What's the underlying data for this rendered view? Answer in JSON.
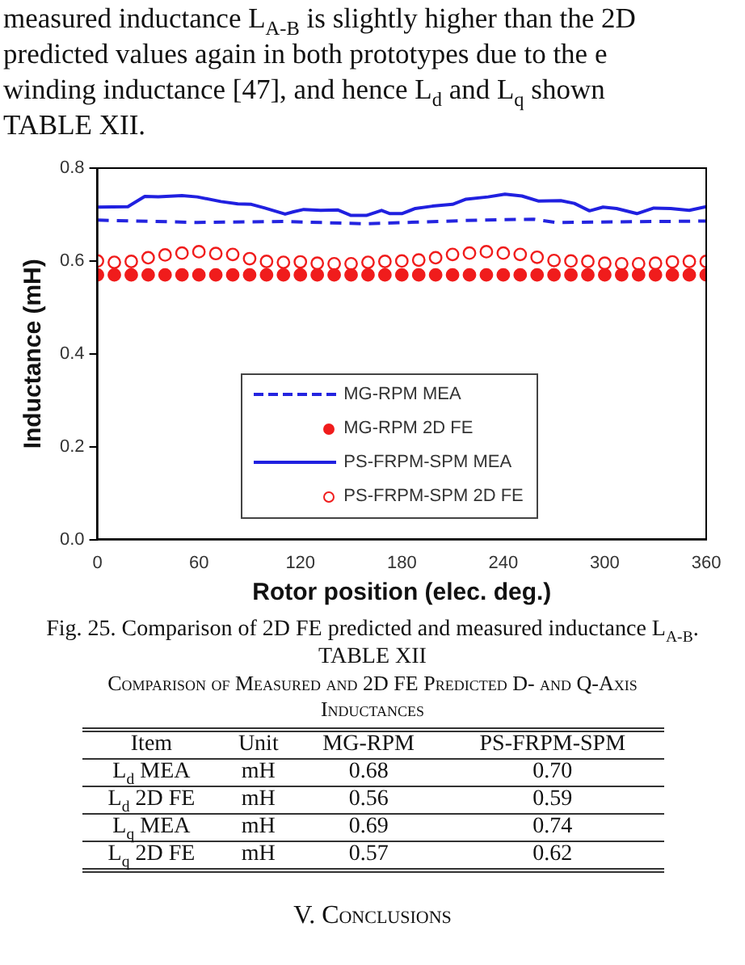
{
  "chart_data": {
    "type": "line",
    "xlabel": "Rotor position (elec. deg.)",
    "ylabel": "Inductance (mH)",
    "xlim": [
      0,
      360
    ],
    "xticks": [
      0,
      60,
      120,
      180,
      240,
      300,
      360
    ],
    "ylim": [
      0,
      0.8
    ],
    "yticks": [
      {
        "value": 0,
        "label": "0.0"
      },
      0.2,
      0.4,
      0.6,
      0.8
    ],
    "grid": false,
    "legend": "bottom",
    "series": [
      {
        "name": "MG-RPM MEA",
        "type": "line",
        "line_style": "dashed",
        "marker": "none",
        "color": "#2424e0",
        "x": [
          0,
          59,
          112,
          159,
          225,
          258,
          271,
          360
        ],
        "values": [
          0.688,
          0.683,
          0.685,
          0.68,
          0.688,
          0.69,
          0.683,
          0.686
        ]
      },
      {
        "name": "MG-RPM 2D FE",
        "type": "scatter",
        "marker": "circle",
        "color": "#f01c1c",
        "x": [
          0,
          10,
          20,
          30,
          40,
          50,
          60,
          70,
          80,
          90,
          100,
          110,
          120,
          130,
          140,
          150,
          160,
          170,
          180,
          190,
          200,
          210,
          220,
          230,
          240,
          250,
          260,
          270,
          280,
          290,
          300,
          310,
          320,
          330,
          340,
          350,
          360
        ],
        "values": [
          0.57,
          0.57,
          0.57,
          0.57,
          0.57,
          0.57,
          0.57,
          0.57,
          0.57,
          0.57,
          0.57,
          0.57,
          0.57,
          0.57,
          0.57,
          0.57,
          0.57,
          0.57,
          0.57,
          0.57,
          0.57,
          0.57,
          0.57,
          0.57,
          0.57,
          0.57,
          0.57,
          0.57,
          0.57,
          0.57,
          0.57,
          0.57,
          0.57,
          0.57,
          0.57,
          0.57,
          0.57
        ]
      },
      {
        "name": "PS-FRPM-SPM MEA",
        "type": "line",
        "line_style": "solid",
        "marker": "none",
        "color": "#2020e0",
        "x": [
          0,
          18,
          28,
          36,
          50,
          59,
          73,
          83,
          91,
          99,
          111,
          116,
          122,
          132,
          142,
          150,
          159,
          168,
          173,
          180,
          188,
          198,
          210,
          218,
          231,
          241,
          251,
          261,
          274,
          282,
          291,
          299,
          307,
          319,
          329,
          339,
          350,
          360
        ],
        "values": [
          0.716,
          0.717,
          0.739,
          0.738,
          0.741,
          0.738,
          0.728,
          0.723,
          0.722,
          0.714,
          0.701,
          0.706,
          0.711,
          0.709,
          0.71,
          0.698,
          0.698,
          0.709,
          0.702,
          0.702,
          0.713,
          0.718,
          0.722,
          0.733,
          0.738,
          0.744,
          0.74,
          0.729,
          0.73,
          0.724,
          0.708,
          0.716,
          0.713,
          0.702,
          0.714,
          0.713,
          0.709,
          0.717
        ]
      },
      {
        "name": "PS-FRPM-SPM 2D FE",
        "type": "scatter",
        "marker": "circle-open",
        "color": "#f01c1c",
        "x": [
          0,
          10,
          20,
          30,
          40,
          50,
          60,
          70,
          80,
          90,
          100,
          110,
          120,
          130,
          140,
          150,
          160,
          170,
          180,
          190,
          200,
          210,
          220,
          230,
          240,
          250,
          260,
          270,
          280,
          290,
          300,
          310,
          320,
          330,
          340,
          350,
          360
        ],
        "values": [
          0.6,
          0.597,
          0.599,
          0.607,
          0.613,
          0.617,
          0.62,
          0.616,
          0.614,
          0.605,
          0.599,
          0.597,
          0.598,
          0.595,
          0.594,
          0.594,
          0.597,
          0.599,
          0.6,
          0.602,
          0.607,
          0.614,
          0.617,
          0.62,
          0.617,
          0.614,
          0.608,
          0.601,
          0.6,
          0.599,
          0.595,
          0.594,
          0.594,
          0.595,
          0.598,
          0.599,
          0.599
        ]
      }
    ],
    "annotations": [
      "measured inductance L$_{A-B}$ is slightly higher than the 2D",
      "predicted values again in both prototypes due to the e",
      "winding inductance [47], and hence L$_{d}$ and L$_{q}$ shown",
      "TABLE XII.",
      "Fig. 25. Comparison of 2D FE predicted and measured inductance L$_{A-B}$.",
      "TABLE XII",
      "Comparison of Measured and 2D FE Predicted D- and Q-Axis",
      "Inductances",
      "Item",
      "Unit",
      "MG-RPM",
      "PS-FRPM-SPM",
      "L$_{d}$ MEA",
      "mH",
      "0.68",
      "0.70",
      "L$_{d}$ 2D FE",
      "mH",
      "0.56",
      "0.59",
      "L$_{q}$ MEA",
      "mH",
      "0.69",
      "0.74",
      "L$_{q}$ 2D FE",
      "mH",
      "0.57",
      "0.62",
      "V.   Conclusions"
    ]
  }
}
